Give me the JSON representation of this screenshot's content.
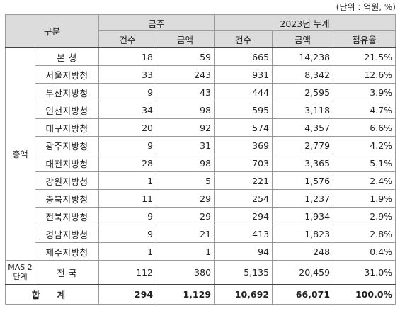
{
  "unit_note": "(단위 : 억원, %)",
  "headers": {
    "category": "구분",
    "geumju": "금주",
    "cumulative": "2023년 누계",
    "count": "건수",
    "amount": "금액",
    "share": "점유율"
  },
  "group_label": "총액",
  "mas_label": "MAS 2단계",
  "rows": [
    {
      "name": "본  청",
      "w_count": "18",
      "w_amount": "59",
      "c_count": "665",
      "c_amount": "14,238",
      "share": "21.5%"
    },
    {
      "name": "서울지방청",
      "w_count": "33",
      "w_amount": "243",
      "c_count": "931",
      "c_amount": "8,342",
      "share": "12.6%"
    },
    {
      "name": "부산지방청",
      "w_count": "9",
      "w_amount": "43",
      "c_count": "444",
      "c_amount": "2,595",
      "share": "3.9%"
    },
    {
      "name": "인천지방청",
      "w_count": "34",
      "w_amount": "98",
      "c_count": "595",
      "c_amount": "3,118",
      "share": "4.7%"
    },
    {
      "name": "대구지방청",
      "w_count": "20",
      "w_amount": "92",
      "c_count": "574",
      "c_amount": "4,357",
      "share": "6.6%"
    },
    {
      "name": "광주지방청",
      "w_count": "9",
      "w_amount": "31",
      "c_count": "369",
      "c_amount": "2,779",
      "share": "4.2%"
    },
    {
      "name": "대전지방청",
      "w_count": "28",
      "w_amount": "98",
      "c_count": "703",
      "c_amount": "3,365",
      "share": "5.1%"
    },
    {
      "name": "강원지방청",
      "w_count": "1",
      "w_amount": "5",
      "c_count": "221",
      "c_amount": "1,576",
      "share": "2.4%"
    },
    {
      "name": "충북지방청",
      "w_count": "11",
      "w_amount": "29",
      "c_count": "254",
      "c_amount": "1,237",
      "share": "1.9%"
    },
    {
      "name": "전북지방청",
      "w_count": "9",
      "w_amount": "29",
      "c_count": "294",
      "c_amount": "1,934",
      "share": "2.9%"
    },
    {
      "name": "경남지방청",
      "w_count": "9",
      "w_amount": "21",
      "c_count": "413",
      "c_amount": "1,823",
      "share": "2.8%"
    },
    {
      "name": "제주지방청",
      "w_count": "1",
      "w_amount": "1",
      "c_count": "94",
      "c_amount": "248",
      "share": "0.4%"
    }
  ],
  "mas_row": {
    "name": "전  국",
    "w_count": "112",
    "w_amount": "380",
    "c_count": "5,135",
    "c_amount": "20,459",
    "share": "31.0%"
  },
  "total_row": {
    "name": "합 계",
    "w_count": "294",
    "w_amount": "1,129",
    "c_count": "10,692",
    "c_amount": "66,071",
    "share": "100.0%"
  }
}
